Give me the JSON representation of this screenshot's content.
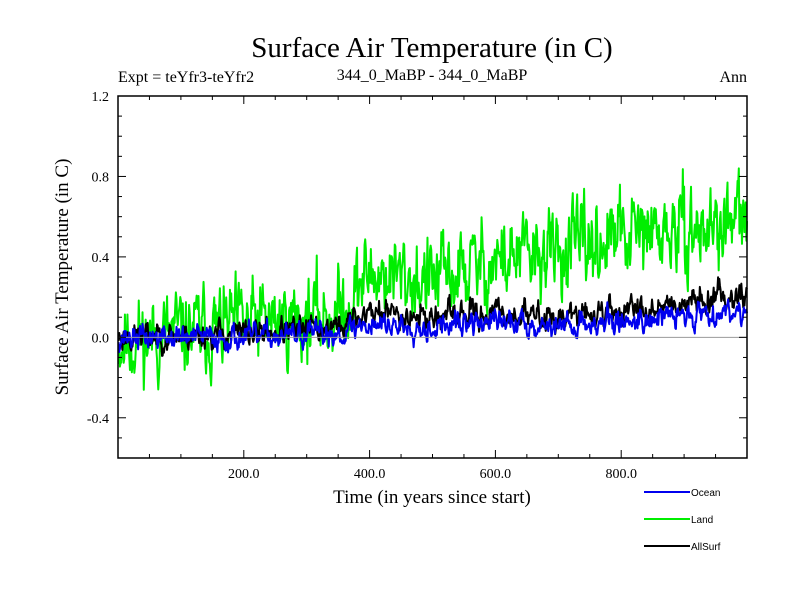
{
  "chart_data": {
    "type": "line",
    "title": "Surface Air Temperature (in C)",
    "subtitle_left": "Expt = teYfr3-teYfr2",
    "subtitle_center": "344_0_MaBP - 344_0_MaBP",
    "subtitle_right": "Ann",
    "xlabel": "Time (in years since start)",
    "ylabel": "Surface Air Temperature (in C)",
    "xlim": [
      0,
      1000
    ],
    "ylim": [
      -0.6,
      1.2
    ],
    "x_ticks": [
      200,
      400,
      600,
      800
    ],
    "x_tick_labels": [
      "200.0",
      "400.0",
      "600.0",
      "800.0"
    ],
    "y_ticks": [
      -0.4,
      0.0,
      0.4,
      0.8,
      1.2
    ],
    "y_tick_labels": [
      "-0.4",
      "0.0",
      "0.4",
      "0.8",
      "1.2"
    ],
    "zero_line": 0.0,
    "legend_position": "bottom-right",
    "x": {
      "start": 1,
      "end": 1000,
      "step": 1
    },
    "series": [
      {
        "name": "Land",
        "color": "#00ee00",
        "trend_knots": [
          [
            0,
            -0.02
          ],
          [
            200,
            0.06
          ],
          [
            350,
            0.12
          ],
          [
            400,
            0.32
          ],
          [
            500,
            0.28
          ],
          [
            600,
            0.38
          ],
          [
            700,
            0.42
          ],
          [
            800,
            0.5
          ],
          [
            900,
            0.52
          ],
          [
            1000,
            0.58
          ]
        ],
        "noise_amplitude": 0.17,
        "seed": 11
      },
      {
        "name": "AllSurf",
        "color": "#000000",
        "trend_knots": [
          [
            0,
            0.0
          ],
          [
            200,
            0.02
          ],
          [
            350,
            0.05
          ],
          [
            400,
            0.13
          ],
          [
            500,
            0.1
          ],
          [
            600,
            0.12
          ],
          [
            700,
            0.1
          ],
          [
            800,
            0.13
          ],
          [
            900,
            0.18
          ],
          [
            1000,
            0.22
          ]
        ],
        "noise_amplitude": 0.055,
        "seed": 23
      },
      {
        "name": "Ocean",
        "color": "#0000ee",
        "trend_knots": [
          [
            0,
            0.0
          ],
          [
            200,
            0.0
          ],
          [
            350,
            0.02
          ],
          [
            400,
            0.07
          ],
          [
            500,
            0.05
          ],
          [
            600,
            0.08
          ],
          [
            700,
            0.06
          ],
          [
            800,
            0.08
          ],
          [
            900,
            0.11
          ],
          [
            1000,
            0.14
          ]
        ],
        "noise_amplitude": 0.05,
        "seed": 37
      }
    ],
    "legend": [
      {
        "label": "Ocean",
        "color": "#0000ee"
      },
      {
        "label": "Land",
        "color": "#00ee00"
      },
      {
        "label": "AllSurf",
        "color": "#000000"
      }
    ]
  }
}
